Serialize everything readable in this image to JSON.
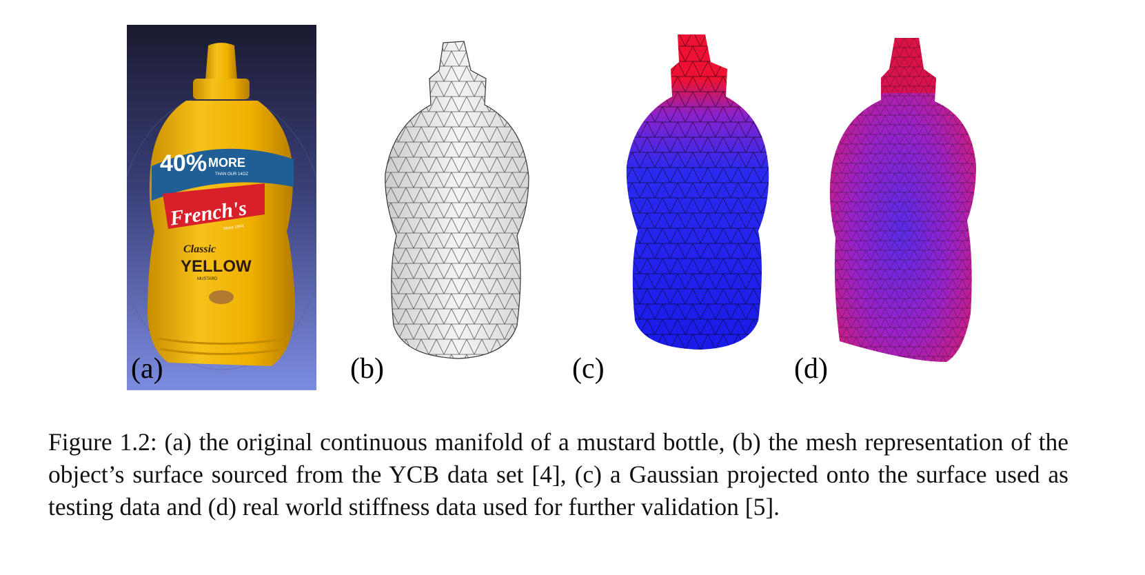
{
  "panels": [
    {
      "label": "(a)",
      "description_icon": "mustard-bottle-photo"
    },
    {
      "label": "(b)",
      "description_icon": "gray-mesh-bottle"
    },
    {
      "label": "(c)",
      "description_icon": "gaussian-colored-mesh-bottle"
    },
    {
      "label": "(d)",
      "description_icon": "stiffness-colored-mesh-bottle"
    }
  ],
  "bottle_text": {
    "promo_big": "40%",
    "promo_small": "MORE",
    "promo_sub": "THAN OUR 14OZ",
    "brand": "French's",
    "since": "Since 1904",
    "variety_line1": "Classic",
    "variety_line2": "YELLOW",
    "product": "MUSTARD"
  },
  "caption": "Figure 1.2: (a) the original continuous manifold of a mustard bottle, (b) the mesh representation of the object’s surface sourced from the YCB data set [4], (c) a Gaussian projected onto the surface used as testing data and (d) real world stiffness data used for further validation [5].",
  "colors": {
    "bottle_yellow": "#f0b400",
    "background_dark": "#1c1c3a",
    "background_light": "#8090e0",
    "mesh_gray": "#e8e8e8",
    "gaussian_blue": "#2222ee",
    "gaussian_red": "#ee1122",
    "stiffness_purple": "#9922cc"
  }
}
